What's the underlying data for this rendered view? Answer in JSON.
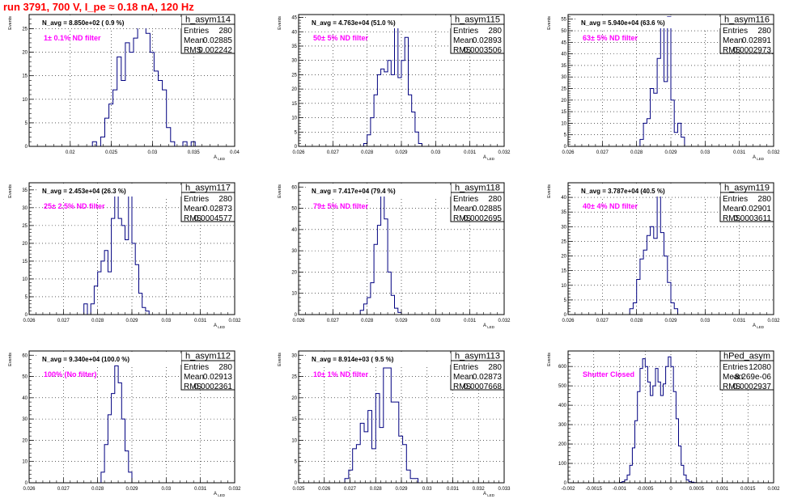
{
  "title": "run 3791,   700 V, I_pe ≈ 0.18 nA, 120 Hz",
  "colors": {
    "title": "#ff0000",
    "line": "#000080",
    "note": "#ff00ff",
    "grid": "#000000"
  },
  "chart_data": [
    {
      "type": "histogram",
      "name": "h_asym114",
      "ylabel": "Events",
      "xlabel": "A_LED",
      "navg": "N_avg = 8.850e+02 ( 0.9 %)",
      "note": "1± 0.1% ND filter",
      "stats": {
        "entries": "280",
        "mean": "0.02885",
        "rms": "0.002242"
      },
      "xlim": [
        0.015,
        0.04
      ],
      "ylim": [
        0,
        28
      ],
      "xticks": [
        "0.02",
        "0.025",
        "0.03",
        "0.035",
        "0.04"
      ],
      "xtick_values": [
        0.02,
        0.025,
        0.03,
        0.035,
        0.04
      ],
      "yticks": [
        "0",
        "5",
        "10",
        "15",
        "20",
        "25"
      ],
      "ytick_values": [
        0,
        5,
        10,
        15,
        20,
        25
      ],
      "bins": {
        "start": 0.0227,
        "width": 0.0005,
        "counts": [
          1,
          0,
          2,
          6,
          9,
          12,
          19,
          14,
          22,
          20,
          23,
          26,
          27,
          24,
          20,
          16,
          14,
          12,
          4,
          1,
          0,
          0,
          1,
          0,
          1
        ]
      }
    },
    {
      "type": "histogram",
      "name": "h_asym115",
      "ylabel": "Events",
      "xlabel": "A_LED",
      "navg": "N_avg = 4.763e+04 (51.0 %)",
      "note": "50± 5% ND filter",
      "stats": {
        "entries": "280",
        "mean": "0.02893",
        "rms": "0.0003506"
      },
      "xlim": [
        0.026,
        0.032
      ],
      "ylim": [
        0,
        46
      ],
      "xticks": [
        "0.026",
        "0.027",
        "0.028",
        "0.029",
        "0.03",
        "0.031",
        "0.032"
      ],
      "xtick_values": [
        0.026,
        0.027,
        0.028,
        0.029,
        0.03,
        0.031,
        0.032
      ],
      "yticks": [
        "0",
        "5",
        "10",
        "15",
        "20",
        "25",
        "30",
        "35",
        "40",
        "45"
      ],
      "ytick_values": [
        0,
        5,
        10,
        15,
        20,
        25,
        30,
        35,
        40,
        45
      ],
      "bins": {
        "start": 0.0279,
        "width": 0.0001,
        "counts": [
          1,
          4,
          10,
          18,
          25,
          27,
          26,
          30,
          25,
          43,
          24,
          30,
          38,
          18,
          12,
          5,
          1,
          0
        ]
      }
    },
    {
      "type": "histogram",
      "name": "h_asym116",
      "ylabel": "Events",
      "xlabel": "A_LED",
      "navg": "N_avg = 5.940e+04 (63.6 %)",
      "note": "63± 5% ND filter",
      "stats": {
        "entries": "280",
        "mean": "0.02891",
        "rms": "0.0002973"
      },
      "xlim": [
        0.026,
        0.032
      ],
      "ylim": [
        0,
        57
      ],
      "xticks": [
        "0.026",
        "0.027",
        "0.028",
        "0.029",
        "0.03",
        "0.031",
        "0.032"
      ],
      "xtick_values": [
        0.026,
        0.027,
        0.028,
        0.029,
        0.03,
        0.031,
        0.032
      ],
      "yticks": [
        "0",
        "5",
        "10",
        "15",
        "20",
        "25",
        "30",
        "35",
        "40",
        "45",
        "50",
        "55"
      ],
      "ytick_values": [
        0,
        5,
        10,
        15,
        20,
        25,
        30,
        35,
        40,
        45,
        50,
        55
      ],
      "bins": {
        "start": 0.0281,
        "width": 0.0001,
        "counts": [
          3,
          10,
          12,
          25,
          23,
          38,
          53,
          28,
          56,
          20,
          6,
          10,
          4,
          0
        ]
      }
    },
    {
      "type": "histogram",
      "name": "h_asym117",
      "ylabel": "Events",
      "xlabel": "A_LED",
      "navg": "N_avg = 2.453e+04 (26.3 %)",
      "note": "25± 2.5% ND filter",
      "stats": {
        "entries": "280",
        "mean": "0.02873",
        "rms": "0.0004577"
      },
      "xlim": [
        0.026,
        0.032
      ],
      "ylim": [
        0,
        37
      ],
      "xticks": [
        "0.026",
        "0.027",
        "0.028",
        "0.029",
        "0.03",
        "0.031",
        "0.032"
      ],
      "xtick_values": [
        0.026,
        0.027,
        0.028,
        0.029,
        0.03,
        0.031,
        0.032
      ],
      "yticks": [
        "0",
        "5",
        "10",
        "15",
        "20",
        "25",
        "30",
        "35"
      ],
      "ytick_values": [
        0,
        5,
        10,
        15,
        20,
        25,
        30,
        35
      ],
      "bins": {
        "start": 0.0276,
        "width": 0.0001,
        "counts": [
          3,
          0,
          3,
          8,
          12,
          15,
          18,
          12,
          27,
          36,
          27,
          25,
          21,
          36,
          20,
          14,
          6,
          2,
          1,
          0
        ]
      }
    },
    {
      "type": "histogram",
      "name": "h_asym118",
      "ylabel": "Events",
      "xlabel": "A_LED",
      "navg": "N_avg = 7.417e+04 (79.4 %)",
      "note": "79± 5% ND filter",
      "stats": {
        "entries": "280",
        "mean": "0.02885",
        "rms": "0.0002695"
      },
      "xlim": [
        0.026,
        0.032
      ],
      "ylim": [
        0,
        62
      ],
      "xticks": [
        "0.026",
        "0.027",
        "0.028",
        "0.029",
        "0.03",
        "0.031",
        "0.032"
      ],
      "xtick_values": [
        0.026,
        0.027,
        0.028,
        0.029,
        0.03,
        0.031,
        0.032
      ],
      "yticks": [
        "0",
        "10",
        "20",
        "30",
        "40",
        "50",
        "60"
      ],
      "ytick_values": [
        0,
        10,
        20,
        30,
        40,
        50,
        60
      ],
      "bins": {
        "start": 0.0278,
        "width": 0.0001,
        "counts": [
          2,
          5,
          8,
          15,
          33,
          42,
          57,
          45,
          20,
          9,
          3,
          1,
          0
        ]
      }
    },
    {
      "type": "histogram",
      "name": "h_asym119",
      "ylabel": "Events",
      "xlabel": "A_LED",
      "navg": "N_avg = 3.787e+04 (40.5 %)",
      "note": "40± 4% ND filter",
      "stats": {
        "entries": "280",
        "mean": "0.02901",
        "rms": "0.0003611"
      },
      "xlim": [
        0.026,
        0.032
      ],
      "ylim": [
        0,
        45
      ],
      "xticks": [
        "0.026",
        "0.027",
        "0.028",
        "0.029",
        "0.03",
        "0.031",
        "0.032"
      ],
      "xtick_values": [
        0.026,
        0.027,
        0.028,
        0.029,
        0.03,
        0.031,
        0.032
      ],
      "yticks": [
        "0",
        "5",
        "10",
        "15",
        "20",
        "25",
        "30",
        "35",
        "40"
      ],
      "ytick_values": [
        0,
        5,
        10,
        15,
        20,
        25,
        30,
        35,
        40
      ],
      "bins": {
        "start": 0.0278,
        "width": 0.0001,
        "counts": [
          2,
          4,
          12,
          19,
          22,
          27,
          30,
          26,
          41,
          28,
          20,
          11,
          4,
          2,
          0
        ]
      }
    },
    {
      "type": "histogram",
      "name": "h_asym112",
      "ylabel": "Events",
      "xlabel": "A_LED",
      "navg": "N_avg = 9.340e+04 (100.0 %)",
      "note": "100% (No filter)",
      "stats": {
        "entries": "280",
        "mean": "0.02913",
        "rms": "0.0002361"
      },
      "xlim": [
        0.026,
        0.032
      ],
      "ylim": [
        0,
        62
      ],
      "xticks": [
        "0.026",
        "0.027",
        "0.028",
        "0.029",
        "0.03",
        "0.031",
        "0.032"
      ],
      "xtick_values": [
        0.026,
        0.027,
        0.028,
        0.029,
        0.03,
        0.031,
        0.032
      ],
      "yticks": [
        "0",
        "10",
        "20",
        "30",
        "40",
        "50",
        "60"
      ],
      "ytick_values": [
        0,
        10,
        20,
        30,
        40,
        50,
        60
      ],
      "bins": {
        "start": 0.0281,
        "width": 0.0001,
        "counts": [
          5,
          18,
          32,
          42,
          55,
          47,
          30,
          15,
          5,
          0
        ]
      }
    },
    {
      "type": "histogram",
      "name": "h_asym113",
      "ylabel": "Events",
      "xlabel": "A_LED",
      "navg": "N_avg = 8.914e+03 ( 9.5 %)",
      "note": "10± 1% ND filter",
      "stats": {
        "entries": "280",
        "mean": "0.02873",
        "rms": "0.0007668"
      },
      "xlim": [
        0.025,
        0.033
      ],
      "ylim": [
        0,
        31
      ],
      "xticks": [
        "0.025",
        "0.026",
        "0.027",
        "0.028",
        "0.029",
        "0.03",
        "0.031",
        "0.032",
        "0.033"
      ],
      "xtick_values": [
        0.025,
        0.026,
        0.027,
        0.028,
        0.029,
        0.03,
        0.031,
        0.032,
        0.033
      ],
      "yticks": [
        "0",
        "5",
        "10",
        "15",
        "20",
        "25",
        "30"
      ],
      "ytick_values": [
        0,
        5,
        10,
        15,
        20,
        25,
        30
      ],
      "bins": {
        "start": 0.0268,
        "width": 0.00015,
        "counts": [
          1,
          3,
          8,
          9,
          14,
          12,
          17,
          8,
          21,
          13,
          27,
          27,
          19,
          19,
          11,
          9,
          3,
          1,
          1,
          0
        ]
      }
    },
    {
      "type": "histogram",
      "name": "hPed_asym",
      "ylabel": "Events",
      "xlabel": "",
      "navg": "",
      "note": "Shutter Closed",
      "stats": {
        "entries": "12080",
        "mean": "-8.269e-06",
        "rms": "0.0002937"
      },
      "xlim": [
        -0.002,
        0.002
      ],
      "ylim": [
        0,
        680
      ],
      "xticks": [
        "-0.002",
        "-0.0015",
        "-0.001",
        "-0.0005",
        "0",
        "0.0005",
        "0.001",
        "0.0015",
        "0.002"
      ],
      "xtick_values": [
        -0.002,
        -0.0015,
        -0.001,
        -0.0005,
        0,
        0.0005,
        0.001,
        0.0015,
        0.002
      ],
      "yticks": [
        "0",
        "100",
        "200",
        "300",
        "400",
        "500",
        "600"
      ],
      "ytick_values": [
        0,
        100,
        200,
        300,
        400,
        500,
        600
      ],
      "bins": {
        "start": -0.001,
        "width": 5e-05,
        "counts": [
          2,
          6,
          15,
          40,
          90,
          180,
          320,
          470,
          590,
          640,
          600,
          520,
          450,
          500,
          590,
          520,
          450,
          510,
          600,
          650,
          600,
          470,
          330,
          190,
          90,
          40,
          15,
          6,
          3,
          1
        ]
      }
    }
  ]
}
